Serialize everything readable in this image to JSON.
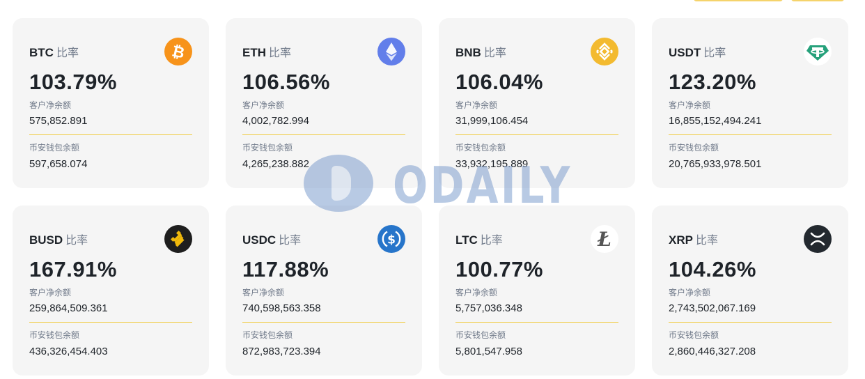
{
  "page": {
    "label_customer_net_balance": "客户净余额",
    "label_binance_wallet_balance": "币安钱包余额",
    "ratio_suffix": "比率",
    "watermark": "ODAILY"
  },
  "cards": [
    {
      "symbol": "BTC",
      "ratio": "103.79%",
      "customer_net_balance": "575,852.891",
      "wallet_balance": "597,658.074",
      "icon": "bitcoin-icon",
      "color": "#f7931a"
    },
    {
      "symbol": "ETH",
      "ratio": "106.56%",
      "customer_net_balance": "4,002,782.994",
      "wallet_balance": "4,265,238.882",
      "icon": "ethereum-icon",
      "color": "#627eea"
    },
    {
      "symbol": "BNB",
      "ratio": "106.04%",
      "customer_net_balance": "31,999,106.454",
      "wallet_balance": "33,932,195.889",
      "icon": "bnb-icon",
      "color": "#f3ba2f"
    },
    {
      "symbol": "USDT",
      "ratio": "123.20%",
      "customer_net_balance": "16,855,152,494.241",
      "wallet_balance": "20,765,933,978.501",
      "icon": "tether-icon",
      "color": "#26a17b"
    },
    {
      "symbol": "BUSD",
      "ratio": "167.91%",
      "customer_net_balance": "259,864,509.361",
      "wallet_balance": "436,326,454.403",
      "icon": "busd-icon",
      "color": "#f0b90b"
    },
    {
      "symbol": "USDC",
      "ratio": "117.88%",
      "customer_net_balance": "740,598,563.358",
      "wallet_balance": "872,983,723.394",
      "icon": "usdc-icon",
      "color": "#2775ca"
    },
    {
      "symbol": "LTC",
      "ratio": "100.77%",
      "customer_net_balance": "5,757,036.348",
      "wallet_balance": "5,801,547.958",
      "icon": "litecoin-icon",
      "color": "#555555"
    },
    {
      "symbol": "XRP",
      "ratio": "104.26%",
      "customer_net_balance": "2,743,502,067.169",
      "wallet_balance": "2,860,446,327.208",
      "icon": "xrp-icon",
      "color": "#23292f"
    }
  ]
}
